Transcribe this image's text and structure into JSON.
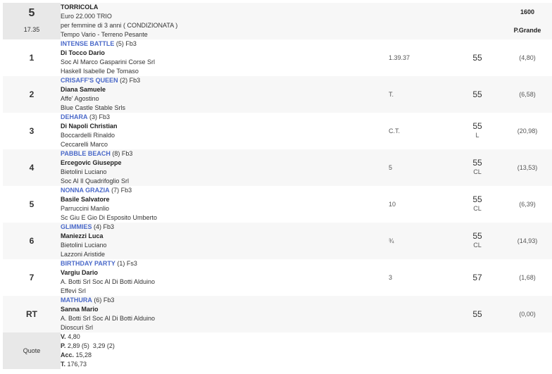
{
  "race": {
    "number": "5",
    "time": "17.35",
    "name": "TORRICOLA",
    "prize": "Euro 22.000 TRIO",
    "conditions": "per femmine di 3 anni ( CONDIZIONATA )",
    "weather": "Tempo Vario - Terreno Pesante",
    "distance": "1600",
    "track": "P.Grande"
  },
  "runners": [
    {
      "pos": "1",
      "horse": "INTENSE BATTLE",
      "extra": " (5) Fb3",
      "jockey": "Di Tocco Dario",
      "trainer": "Soc Al Marco Gasparini Corse Srl",
      "owner": "Haskell Isabelle De Tomaso",
      "time": "1.39.37",
      "weight": "55",
      "note": "",
      "odds": "(4,80)"
    },
    {
      "pos": "2",
      "horse": "CRISAFF'S QUEEN",
      "extra": " (2) Fb3",
      "jockey": "Diana Samuele",
      "trainer": "Affe' Agostino",
      "owner": "Blue Castle Stable Srls",
      "time": "T.",
      "weight": "55",
      "note": "",
      "odds": "(6,58)"
    },
    {
      "pos": "3",
      "horse": "DEHARA",
      "extra": " (3) Fb3",
      "jockey": "Di Napoli Christian",
      "trainer": "Boccardelli Rinaldo",
      "owner": "Ceccarelli Marco",
      "time": "C.T.",
      "weight": "55",
      "note": "L",
      "odds": "(20,98)"
    },
    {
      "pos": "4",
      "horse": "PABBLE BEACH",
      "extra": " (8) Fb3",
      "jockey": "Ercegovic Giuseppe",
      "trainer": "Bietolini Luciano",
      "owner": "Soc Al Il Quadrifoglio Srl",
      "time": "5",
      "weight": "55",
      "note": "CL",
      "odds": "(13,53)"
    },
    {
      "pos": "5",
      "horse": "NONNA GRAZIA",
      "extra": " (7) Fb3",
      "jockey": "Basile Salvatore",
      "trainer": "Parruccini Manlio",
      "owner": "Sc Giu E Gio Di Esposito Umberto",
      "time": "10",
      "weight": "55",
      "note": "CL",
      "odds": "(6,39)"
    },
    {
      "pos": "6",
      "horse": "GLIMMIES",
      "extra": " (4) Fb3",
      "jockey": "Maniezzi Luca",
      "trainer": "Bietolini Luciano",
      "owner": "Lazzoni Aristide",
      "time": "¾",
      "weight": "55",
      "note": "CL",
      "odds": "(14,93)"
    },
    {
      "pos": "7",
      "horse": "BIRTHDAY PARTY",
      "extra": " (1) Fs3",
      "jockey": "Vargiu Dario",
      "trainer": "A. Botti Srl Soc Al Di Botti Alduino",
      "owner": "Effevi Srl",
      "time": "3",
      "weight": "57",
      "note": "",
      "odds": "(1,68)"
    },
    {
      "pos": "RT",
      "horse": "MATHURA",
      "extra": " (6) Fb3",
      "jockey": "Sanna Mario",
      "trainer": "A. Botti Srl Soc Al Di Botti Alduino",
      "owner": "Dioscuri Srl",
      "time": "",
      "weight": "55",
      "note": "",
      "odds": "(0,00)"
    }
  ],
  "quote": {
    "label": "Quote",
    "v_label": "V.",
    "v": " 4,80",
    "p_label": "P.",
    "p": " 2,89 (5)  3,29 (2)",
    "acc_label": "Acc.",
    "acc": " 15,28",
    "t_label": "T.",
    "t": " 176,73"
  }
}
